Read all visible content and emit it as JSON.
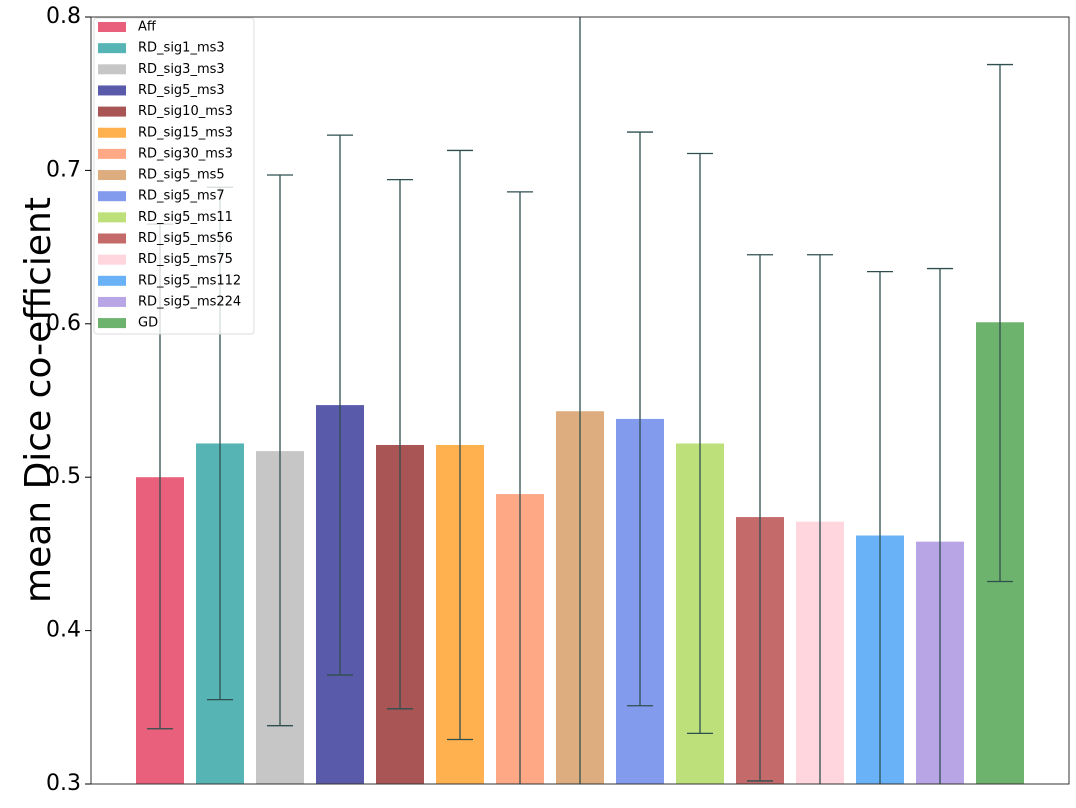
{
  "chart_data": {
    "type": "bar",
    "title": "",
    "xlabel": "",
    "ylabel": "mean Dice co-efficient",
    "ylim": [
      0.3,
      0.8
    ],
    "yticks": [
      "0.3",
      "0.4",
      "0.5",
      "0.6",
      "0.7",
      "0.8"
    ],
    "legend_position": "top-left",
    "error_bar_color": "#2f4f4f",
    "series": [
      {
        "name": "Aff",
        "value": 0.5,
        "err_low": 0.336,
        "err_high": 0.665,
        "color": "#e8607c"
      },
      {
        "name": "RD_sig1_ms3",
        "value": 0.522,
        "err_low": 0.355,
        "err_high": 0.689,
        "color": "#56b4b4"
      },
      {
        "name": "RD_sig3_ms3",
        "value": 0.517,
        "err_low": 0.338,
        "err_high": 0.697,
        "color": "#c6c6c6"
      },
      {
        "name": "RD_sig5_ms3",
        "value": 0.547,
        "err_low": 0.371,
        "err_high": 0.723,
        "color": "#5a5aaa"
      },
      {
        "name": "RD_sig10_ms3",
        "value": 0.521,
        "err_low": 0.349,
        "err_high": 0.694,
        "color": "#aa5555"
      },
      {
        "name": "RD_sig15_ms3",
        "value": 0.521,
        "err_low": 0.329,
        "err_high": 0.713,
        "color": "#ffb04f"
      },
      {
        "name": "RD_sig30_ms3",
        "value": 0.489,
        "err_low": 0.292,
        "err_high": 0.686,
        "color": "#ffa885"
      },
      {
        "name": "RD_sig5_ms5",
        "value": 0.543,
        "err_low": 0.28,
        "err_high": 0.806,
        "color": "#ddad7f"
      },
      {
        "name": "RD_sig5_ms7",
        "value": 0.538,
        "err_low": 0.351,
        "err_high": 0.725,
        "color": "#829bec"
      },
      {
        "name": "RD_sig5_ms11",
        "value": 0.522,
        "err_low": 0.333,
        "err_high": 0.711,
        "color": "#bde07a"
      },
      {
        "name": "RD_sig5_ms56",
        "value": 0.474,
        "err_low": 0.302,
        "err_high": 0.645,
        "color": "#c56a6a"
      },
      {
        "name": "RD_sig5_ms75",
        "value": 0.471,
        "err_low": 0.297,
        "err_high": 0.645,
        "color": "#ffd6dd"
      },
      {
        "name": "RD_sig5_ms112",
        "value": 0.462,
        "err_low": 0.29,
        "err_high": 0.634,
        "color": "#6ab2f7"
      },
      {
        "name": "RD_sig5_ms224",
        "value": 0.458,
        "err_low": 0.28,
        "err_high": 0.636,
        "color": "#b8a5e6"
      },
      {
        "name": "GD",
        "value": 0.601,
        "err_low": 0.432,
        "err_high": 0.769,
        "color": "#6db36d"
      }
    ]
  }
}
